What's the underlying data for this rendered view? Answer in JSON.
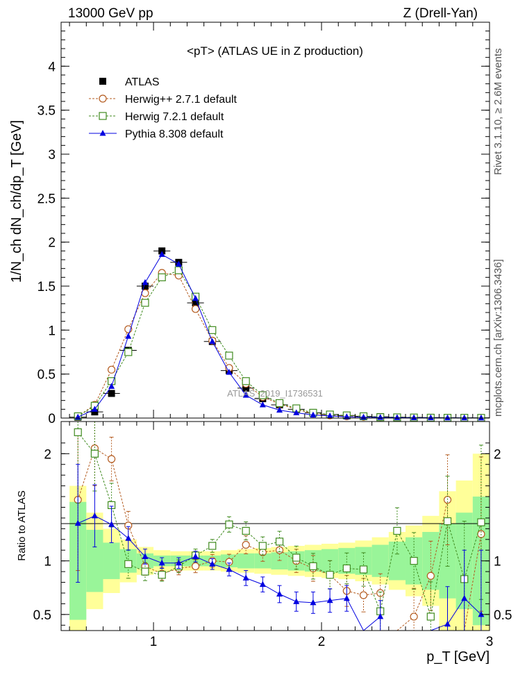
{
  "header": {
    "left": "13000 GeV pp",
    "right": "Z (Drell-Yan)"
  },
  "side_notes": {
    "rivet": "Rivet 3.1.10, ≥ 2.6M events",
    "mcplots": "mcplots.cern.ch [arXiv:1306.3436]"
  },
  "watermark": "ATLAS_2019_I1736531",
  "colors": {
    "atlas": "#000000",
    "herwigpp": "#b35a1e",
    "herwig7": "#3f8a1e",
    "pythia": "#0000e0",
    "band_inner": "#99f599",
    "band_outer": "#ffff99"
  },
  "chart_data": [
    {
      "type": "scatter",
      "title": "<pT> (ATLAS UE in Z production)",
      "xlabel": "",
      "ylabel": "1/N_ch dN_ch/dp_T [GeV]",
      "xlim": [
        0.45,
        3.0
      ],
      "ylim": [
        0,
        4.5
      ],
      "yticks": [
        0,
        0.5,
        1,
        1.5,
        2,
        2.5,
        3,
        3.5,
        4
      ],
      "legend_position": "top-left",
      "x": [
        0.55,
        0.65,
        0.75,
        0.85,
        0.95,
        1.05,
        1.15,
        1.25,
        1.35,
        1.45,
        1.55,
        1.65,
        1.75,
        1.85,
        1.95,
        2.05,
        2.15,
        2.25,
        2.35,
        2.45,
        2.55,
        2.65,
        2.75,
        2.85,
        2.95
      ],
      "series": [
        {
          "name": "ATLAS",
          "marker": "filled-square",
          "values": [
            0.01,
            0.07,
            0.28,
            0.77,
            1.5,
            1.9,
            1.77,
            1.31,
            0.87,
            0.54,
            0.34,
            0.22,
            0.15,
            0.1,
            0.06,
            0.04,
            0.03,
            0.02,
            0.015,
            0.01,
            0.008,
            0.006,
            0.005,
            0.004,
            0.003
          ]
        },
        {
          "name": "Herwig++ 2.7.1 default",
          "marker": "open-circle",
          "values": [
            0.02,
            0.15,
            0.55,
            1.01,
            1.42,
            1.65,
            1.62,
            1.24,
            0.88,
            0.57,
            0.39,
            0.24,
            0.16,
            0.1,
            0.05,
            0.03,
            0.02,
            0.014,
            0.01,
            0.006,
            0.004,
            0.003,
            0.003,
            0.002,
            0.002
          ]
        },
        {
          "name": "Herwig 7.2.1 default",
          "marker": "open-square",
          "values": [
            0.02,
            0.14,
            0.42,
            0.75,
            1.31,
            1.6,
            1.68,
            1.38,
            1.0,
            0.71,
            0.42,
            0.26,
            0.17,
            0.11,
            0.06,
            0.04,
            0.03,
            0.02,
            0.01,
            0.008,
            0.006,
            0.004,
            0.003,
            0.003,
            0.002
          ]
        },
        {
          "name": "Pythia 8.308 default",
          "marker": "filled-triangle",
          "values": [
            0.01,
            0.1,
            0.36,
            0.93,
            1.54,
            1.86,
            1.75,
            1.36,
            0.87,
            0.52,
            0.26,
            0.15,
            0.09,
            0.06,
            0.035,
            0.025,
            0.015,
            0.01,
            0.007,
            0.005,
            0.004,
            0.003,
            0.002,
            0.002,
            0.001
          ]
        }
      ]
    },
    {
      "type": "scatter",
      "title": "",
      "xlabel": "p_T [GeV]",
      "ylabel": "Ratio to ATLAS",
      "xlim": [
        0.45,
        3.0
      ],
      "ylim": [
        0.35,
        2.3
      ],
      "yticks": [
        0.5,
        1,
        2
      ],
      "xticks": [
        1,
        2,
        3
      ],
      "x": [
        0.55,
        0.65,
        0.75,
        0.85,
        0.95,
        1.05,
        1.15,
        1.25,
        1.35,
        1.45,
        1.55,
        1.65,
        1.75,
        1.85,
        1.95,
        2.05,
        2.15,
        2.25,
        2.35,
        2.45,
        2.55,
        2.65,
        2.75,
        2.85,
        2.95
      ],
      "bands": {
        "inner": [
          0.55,
          0.29,
          0.17,
          0.11,
          0.07,
          0.05,
          0.05,
          0.05,
          0.05,
          0.06,
          0.07,
          0.07,
          0.08,
          0.09,
          0.1,
          0.11,
          0.12,
          0.13,
          0.15,
          0.18,
          0.22,
          0.27,
          0.35,
          0.45,
          0.6
        ],
        "outer": [
          0.7,
          0.45,
          0.3,
          0.2,
          0.13,
          0.1,
          0.09,
          0.09,
          0.09,
          0.1,
          0.11,
          0.12,
          0.13,
          0.14,
          0.15,
          0.16,
          0.17,
          0.19,
          0.22,
          0.27,
          0.33,
          0.42,
          0.65,
          0.75,
          1.0
        ]
      },
      "series": [
        {
          "name": "Herwig++ 2.7.1 default",
          "values": [
            1.57,
            2.05,
            1.95,
            1.33,
            0.95,
            0.88,
            0.93,
            0.95,
            1.0,
            0.99,
            1.15,
            1.08,
            1.1,
            1.0,
            0.93,
            0.87,
            0.72,
            0.68,
            0.7,
            null,
            0.48,
            0.86,
            1.57,
            null,
            1.25
          ]
        },
        {
          "name": "Herwig 7.2.1 default",
          "values": [
            2.2,
            2.0,
            1.52,
            0.97,
            0.9,
            0.87,
            0.95,
            1.05,
            1.14,
            1.34,
            1.28,
            1.14,
            1.18,
            1.03,
            0.95,
            0.87,
            0.93,
            0.92,
            0.53,
            1.28,
            1.0,
            0.48,
            1.37,
            0.83,
            1.36
          ]
        },
        {
          "name": "Pythia 8.308 default",
          "values": [
            1.35,
            1.42,
            1.34,
            1.21,
            1.04,
            0.98,
            0.98,
            1.04,
            0.97,
            0.92,
            0.84,
            0.78,
            0.69,
            0.62,
            0.61,
            0.63,
            0.65,
            0.33,
            0.48,
            null,
            null,
            null,
            0.41,
            0.65,
            0.5
          ]
        }
      ]
    }
  ]
}
